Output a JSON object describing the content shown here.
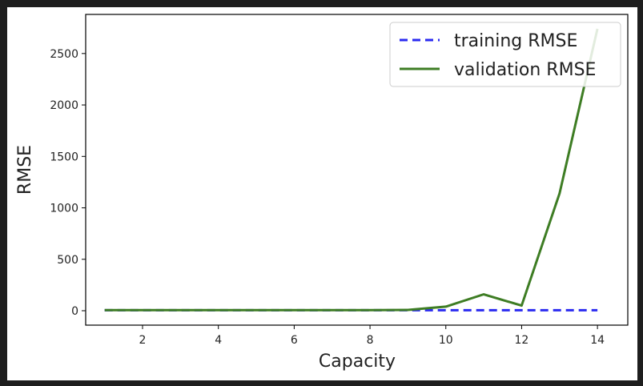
{
  "chart_data": {
    "type": "line",
    "xlabel": "Capacity",
    "ylabel": "RMSE",
    "xlim": [
      0.5,
      14.8
    ],
    "ylim": [
      -140,
      2880
    ],
    "xticks": [
      2,
      4,
      6,
      8,
      10,
      12,
      14
    ],
    "yticks": [
      0,
      500,
      1000,
      1500,
      2000,
      2500
    ],
    "grid": false,
    "legend_placement": "top-right",
    "x": [
      1,
      2,
      3,
      4,
      5,
      6,
      7,
      8,
      9,
      10,
      11,
      12,
      13,
      14
    ],
    "series": [
      {
        "name": "training RMSE",
        "style": "dashed",
        "color": "#2b2bf0",
        "values": [
          5,
          5,
          5,
          5,
          5,
          5,
          5,
          5,
          5,
          5,
          5,
          5,
          5,
          5
        ]
      },
      {
        "name": "validation RMSE",
        "style": "solid",
        "color": "#3e7d24",
        "values": [
          6,
          6,
          6,
          6,
          6,
          6,
          6,
          6,
          8,
          40,
          160,
          50,
          1140,
          2740
        ]
      }
    ]
  }
}
